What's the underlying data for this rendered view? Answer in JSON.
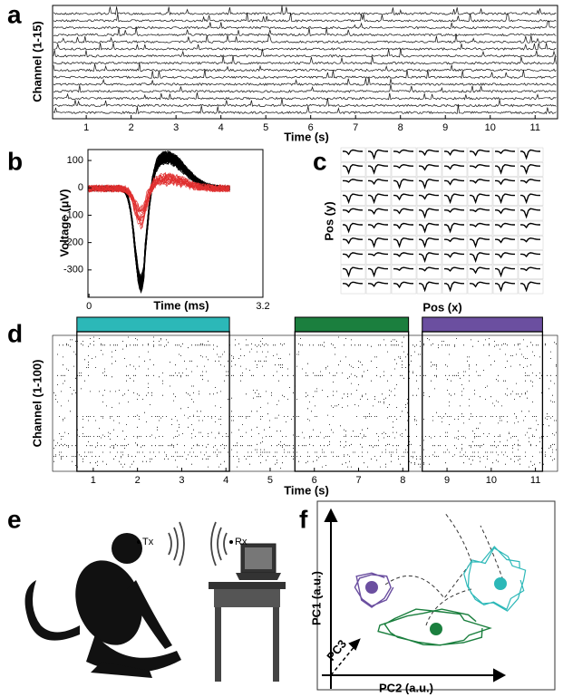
{
  "panels": [
    {
      "label": "a",
      "x_label": "Time (s)",
      "y_label": "Channel (1-15)",
      "xticks": [
        1,
        2,
        3,
        4,
        5,
        6,
        7,
        8,
        9,
        10,
        11
      ],
      "xlim": [
        0.25,
        11.5
      ]
    },
    {
      "label": "b",
      "x_label": "Time (ms)",
      "y_label": "Voltage (μV)",
      "xticks": [
        0,
        3.2
      ],
      "xlim": [
        -0.02,
        3.2
      ],
      "yticks": [
        100,
        0,
        -100,
        -200,
        -300
      ],
      "ylim": [
        -400,
        140
      ]
    },
    {
      "label": "c",
      "x_label": "Pos (x)",
      "y_label": "Pos (y)"
    },
    {
      "label": "d",
      "x_label": "Time (s)",
      "y_label": "Channel (1-100)",
      "xticks": [
        1,
        2,
        3,
        4,
        5,
        6,
        7,
        8,
        9,
        10,
        11
      ],
      "xlim": [
        0.08,
        11.5
      ],
      "epochs": [
        {
          "color": "#2cb8b8",
          "start": 0.63,
          "end": 4.08
        },
        {
          "color": "#1b7f3e",
          "start": 5.56,
          "end": 8.13
        },
        {
          "color": "#6b4fa0",
          "start": 8.44,
          "end": 11.16
        }
      ]
    },
    {
      "label": "e",
      "transmitter": "Tx",
      "receiver": "Rx"
    },
    {
      "label": "f",
      "x_label": "PC2 (a.u.)",
      "y_label": "PC1 (a.u.)",
      "z_label": "PC3"
    }
  ]
}
